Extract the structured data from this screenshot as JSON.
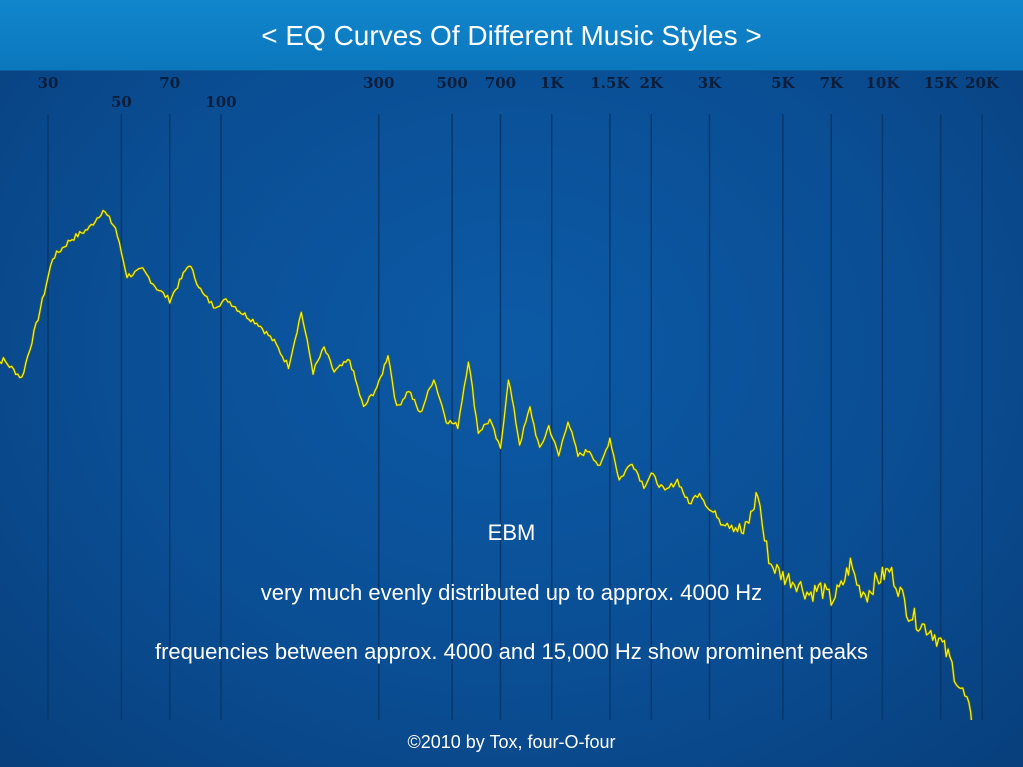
{
  "title": "< EQ Curves Of Different Music Styles >",
  "chart_data": {
    "type": "line",
    "x_scale": "log",
    "x_unit": "Hz",
    "grid": true,
    "tick_labels": [
      {
        "label": "30",
        "hz": 30,
        "row": 1
      },
      {
        "label": "50",
        "hz": 50,
        "row": 2
      },
      {
        "label": "70",
        "hz": 70,
        "row": 1
      },
      {
        "label": "100",
        "hz": 100,
        "row": 2
      },
      {
        "label": "300",
        "hz": 300,
        "row": 1
      },
      {
        "label": "500",
        "hz": 500,
        "row": 1
      },
      {
        "label": "700",
        "hz": 700,
        "row": 1
      },
      {
        "label": "1K",
        "hz": 1000,
        "row": 1
      },
      {
        "label": "1.5K",
        "hz": 1500,
        "row": 1
      },
      {
        "label": "2K",
        "hz": 2000,
        "row": 1
      },
      {
        "label": "3K",
        "hz": 3000,
        "row": 1
      },
      {
        "label": "5K",
        "hz": 5000,
        "row": 1
      },
      {
        "label": "7K",
        "hz": 7000,
        "row": 1
      },
      {
        "label": "10K",
        "hz": 10000,
        "row": 1
      },
      {
        "label": "15K",
        "hz": 15000,
        "row": 1
      },
      {
        "label": "20K",
        "hz": 20000,
        "row": 1
      }
    ],
    "level_range": [
      0,
      100
    ],
    "series": [
      {
        "color": "#f2f20a",
        "points": [
          [
            20,
            59
          ],
          [
            22,
            60
          ],
          [
            25,
            57
          ],
          [
            28,
            67
          ],
          [
            31,
            77
          ],
          [
            35,
            80
          ],
          [
            40,
            82
          ],
          [
            44,
            85
          ],
          [
            48,
            82
          ],
          [
            52,
            74
          ],
          [
            58,
            75
          ],
          [
            64,
            72
          ],
          [
            70,
            70
          ],
          [
            75,
            73
          ],
          [
            80,
            76
          ],
          [
            88,
            71
          ],
          [
            95,
            69
          ],
          [
            105,
            70
          ],
          [
            115,
            68
          ],
          [
            130,
            66
          ],
          [
            145,
            63
          ],
          [
            160,
            59
          ],
          [
            175,
            68
          ],
          [
            190,
            58
          ],
          [
            205,
            62
          ],
          [
            220,
            58
          ],
          [
            245,
            60
          ],
          [
            270,
            52
          ],
          [
            300,
            56
          ],
          [
            320,
            61
          ],
          [
            340,
            52
          ],
          [
            370,
            55
          ],
          [
            400,
            51
          ],
          [
            440,
            57
          ],
          [
            480,
            50
          ],
          [
            520,
            49
          ],
          [
            560,
            60
          ],
          [
            600,
            48
          ],
          [
            650,
            50
          ],
          [
            700,
            45
          ],
          [
            740,
            57
          ],
          [
            800,
            46
          ],
          [
            860,
            52
          ],
          [
            920,
            45
          ],
          [
            980,
            49
          ],
          [
            1050,
            44
          ],
          [
            1120,
            50
          ],
          [
            1200,
            44
          ],
          [
            1300,
            45
          ],
          [
            1400,
            42
          ],
          [
            1500,
            47
          ],
          [
            1600,
            40
          ],
          [
            1750,
            43
          ],
          [
            1900,
            39
          ],
          [
            2000,
            41
          ],
          [
            2200,
            38
          ],
          [
            2400,
            40
          ],
          [
            2600,
            36
          ],
          [
            2800,
            38
          ],
          [
            3000,
            35
          ],
          [
            3200,
            34
          ],
          [
            3500,
            33
          ],
          [
            3800,
            31
          ],
          [
            4000,
            34
          ],
          [
            4200,
            38
          ],
          [
            4400,
            30
          ],
          [
            4600,
            26
          ],
          [
            5000,
            24
          ],
          [
            5500,
            23
          ],
          [
            6000,
            21
          ],
          [
            6500,
            22
          ],
          [
            7000,
            20
          ],
          [
            7500,
            22
          ],
          [
            8000,
            26
          ],
          [
            8500,
            22
          ],
          [
            9000,
            21
          ],
          [
            9500,
            23
          ],
          [
            10000,
            24
          ],
          [
            10500,
            25
          ],
          [
            11000,
            23
          ],
          [
            12000,
            18
          ],
          [
            13000,
            16
          ],
          [
            14000,
            15
          ],
          [
            15000,
            13
          ],
          [
            16000,
            10
          ],
          [
            17000,
            6
          ],
          [
            18000,
            3
          ],
          [
            19000,
            -3
          ],
          [
            20000,
            -14
          ]
        ]
      }
    ]
  },
  "captions": {
    "line1": "EBM",
    "line2": "very much evenly distributed up to approx. 4000 Hz",
    "line3": "frequencies between approx. 4000 and 15,000 Hz show prominent peaks"
  },
  "footer": "©2010 by Tox, four-O-four",
  "colors": {
    "background": "#0a4f93",
    "title_bar": "#0b7fc4",
    "curve": "#f2f20a",
    "grid": "#08386c",
    "axis_labels": "#0b1e3c"
  }
}
